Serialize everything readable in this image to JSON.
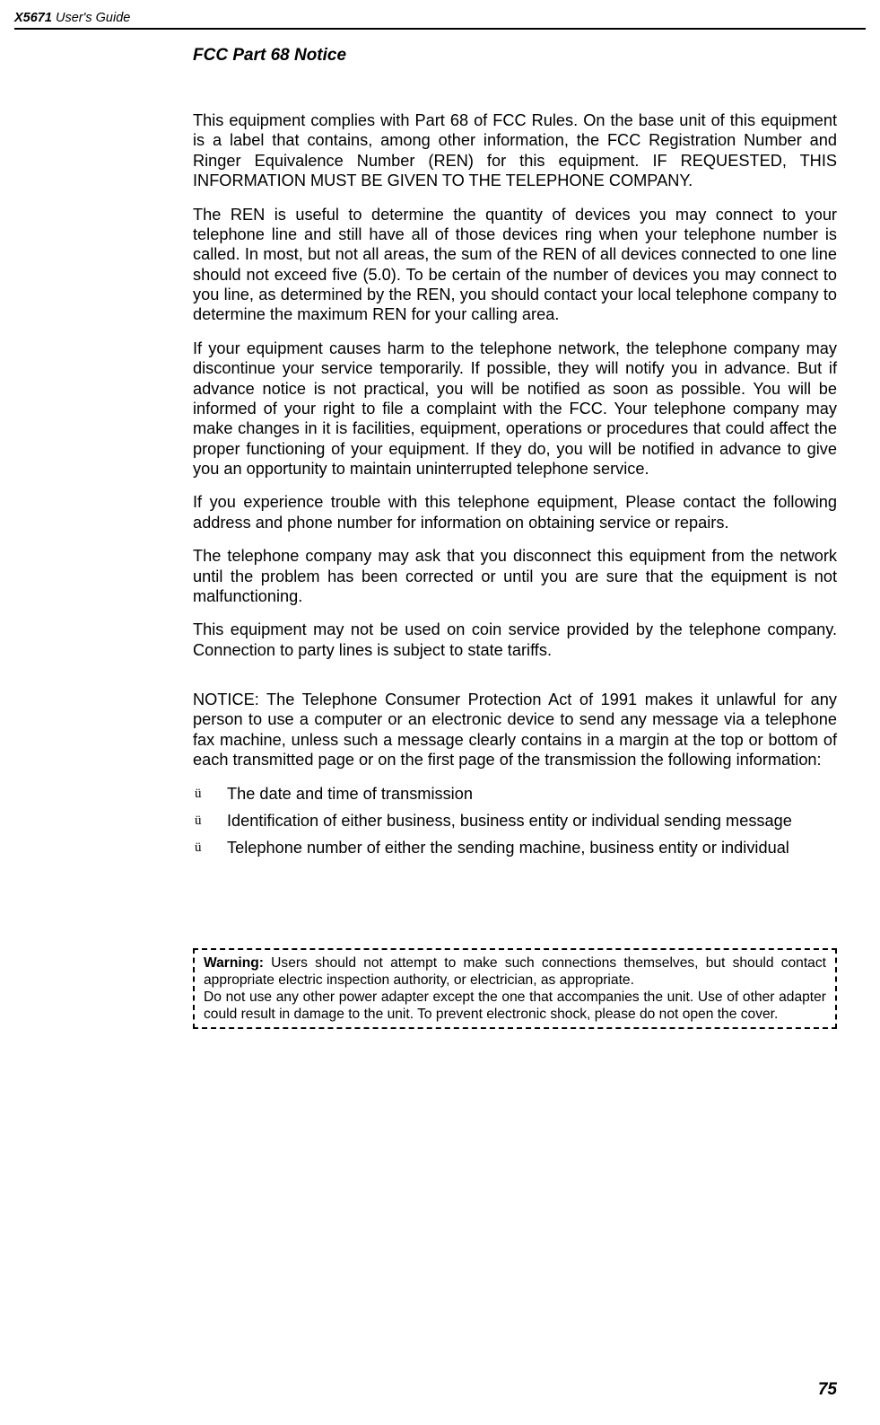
{
  "header": {
    "product": "X5671",
    "suffix": " User's Guide"
  },
  "section_title": "FCC Part 68 Notice",
  "paragraphs": {
    "p1": "This equipment complies with Part 68 of FCC Rules. On the base unit of this equipment is a label that contains, among other information, the FCC Registration Number and Ringer Equivalence Number (REN) for this equipment. IF REQUESTED, THIS INFORMATION MUST BE GIVEN TO THE TELEPHONE COMPANY.",
    "p2": "The REN is useful to determine the quantity of devices you may connect to your telephone line and still have all of those devices ring when your telephone number is called. In most, but not all areas, the sum of the REN of all devices connected to one line should not exceed five (5.0). To be certain of the number of devices you may connect to you line, as determined by the REN, you should contact your local telephone company to determine the maximum REN for your calling area.",
    "p3": "If your equipment causes harm to the telephone network, the telephone company may discontinue your service temporarily. If possible, they will notify you in advance. But if advance notice is not practical, you will be notified as soon as possible. You will be informed of your right to file a complaint with the FCC. Your telephone company may make changes in it is facilities, equipment, operations or procedures that could affect the proper functioning of your equipment. If they do, you will be notified in advance to give you an opportunity to maintain uninterrupted telephone service.",
    "p4": "If you experience trouble with this telephone equipment, Please contact the following address and phone number for information on obtaining service or repairs.",
    "p5": "The telephone company may ask that you disconnect this equipment from the network until the problem has been corrected or until you are sure that the equipment is not malfunctioning.",
    "p6": "This equipment may not be used on coin service provided by the telephone company. Connection to party lines is subject to state tariffs.",
    "notice": "NOTICE: The Telephone Consumer Protection Act of 1991 makes it unlawful for any person to use a computer or an electronic device to send any message via a telephone fax machine, unless such a message clearly contains in a margin at the top or bottom of each transmitted page or on the first page of the transmission the following information:"
  },
  "bullets": {
    "marker": "ü",
    "b1": "The date and time of transmission",
    "b2": "Identification of either business, business entity or individual sending message",
    "b3": "Telephone number of either the sending machine, business entity or individual"
  },
  "warning": {
    "label": "Warning: ",
    "line1": "Users should not attempt to make such connections themselves, but should contact appropriate electric inspection authority, or electrician, as appropriate.",
    "line2": "Do not use any other power adapter except the one that accompanies the unit. Use of other adapter could result in damage to the unit. To prevent electronic shock, please do not open the cover."
  },
  "page_number": "75"
}
